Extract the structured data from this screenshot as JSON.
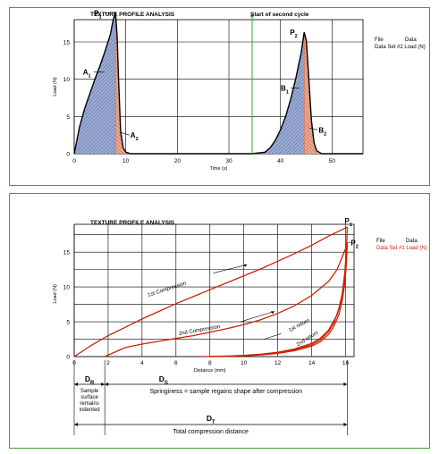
{
  "chart_data": [
    {
      "type": "area",
      "title": "TEXTURE PROFILE ANALYSIS",
      "xlabel": "Time (s)",
      "ylabel": "Load (N)",
      "xlim": [
        0,
        56
      ],
      "ylim": [
        0,
        18
      ],
      "x_ticks": [
        "0",
        "10",
        "20",
        "30",
        "40",
        "50"
      ],
      "y_ticks": [
        "0",
        "5",
        "10",
        "15"
      ],
      "grid": true,
      "legend": {
        "position": "top-right",
        "header": [
          "File",
          "Data"
        ],
        "entries": [
          {
            "label": "Data Set #2 Load (N)",
            "color": "#000000"
          }
        ]
      },
      "vline": {
        "x": 34.5,
        "label": "Start of second cycle",
        "color": "#3aa63a"
      },
      "series": [
        {
          "name": "Data Set #2",
          "x": [
            0,
            1,
            2,
            3,
            4,
            5,
            6,
            7,
            7.5,
            8,
            8.3,
            8.6,
            9,
            9.5,
            10,
            11,
            12,
            20,
            30,
            34.5,
            37,
            38,
            39,
            40,
            41,
            42,
            43,
            44,
            44.6,
            45,
            45.4,
            46,
            46.5,
            47,
            48,
            50,
            56
          ],
          "y": [
            0,
            3.5,
            6,
            8,
            10,
            11.8,
            13.8,
            16,
            17.8,
            19,
            16,
            10,
            3,
            0.8,
            0.2,
            0,
            0,
            0,
            0,
            0,
            0.2,
            0.8,
            1.8,
            3.2,
            5,
            7.4,
            10.2,
            13.5,
            16.3,
            15.2,
            11,
            4.5,
            1.5,
            0.4,
            0,
            0,
            0
          ]
        }
      ],
      "annotations": [
        {
          "label": "P",
          "sub": "1",
          "x": 8,
          "y": 19
        },
        {
          "label": "A",
          "sub": "1",
          "x": 5.5,
          "y": 11
        },
        {
          "label": "A",
          "sub": "2",
          "x": 9.5,
          "y": 2.5
        },
        {
          "label": "P",
          "sub": "2",
          "x": 44.6,
          "y": 16.3
        },
        {
          "label": "B",
          "sub": "1",
          "x": 43,
          "y": 8.8
        },
        {
          "label": "B",
          "sub": "2",
          "x": 46,
          "y": 3.2
        }
      ],
      "fills": {
        "A1_B1": "#9aaad0",
        "A2_B2": "#e8a890"
      }
    },
    {
      "type": "line",
      "title": "TEXTURE PROFILE ANALYSIS",
      "xlabel": "Distance (mm)",
      "ylabel": "Load (N)",
      "xlim": [
        0,
        16.5
      ],
      "ylim": [
        0,
        19
      ],
      "x_ticks": [
        "0",
        "2",
        "4",
        "6",
        "8",
        "10",
        "12",
        "14",
        "16"
      ],
      "y_ticks": [
        "0",
        "5",
        "10",
        "15"
      ],
      "grid": true,
      "legend": {
        "position": "top-right",
        "header": [
          "File",
          "Data"
        ],
        "entries": [
          {
            "label": "Data Set #1 Load (N)",
            "color": "#cc2200"
          }
        ]
      },
      "series": [
        {
          "name": "Data Set #1 - 1st Compression",
          "x": [
            0,
            1,
            2,
            3,
            4,
            5,
            6,
            7,
            8,
            9,
            10,
            11,
            12,
            13,
            14,
            15,
            16.1
          ],
          "y": [
            0,
            1.6,
            3,
            4.2,
            5.4,
            6.5,
            7.6,
            8.6,
            9.6,
            10.6,
            11.6,
            12.6,
            13.7,
            14.8,
            16,
            17.3,
            18.6
          ]
        },
        {
          "name": "Data Set #1 - 1st return",
          "x": [
            16.1,
            16.05,
            15.95,
            15.8,
            15.6,
            15.3,
            15,
            14.5,
            14,
            13,
            12,
            11,
            10,
            9,
            8,
            7.5
          ],
          "y": [
            18.6,
            15.5,
            12,
            9,
            6.8,
            4.8,
            3.6,
            2.4,
            1.7,
            1,
            0.6,
            0.35,
            0.18,
            0.08,
            0.02,
            0
          ]
        },
        {
          "name": "Data Set #1 - 2nd Compression",
          "x": [
            1.8,
            3,
            4,
            5,
            6,
            7,
            8,
            9,
            10,
            11,
            12,
            13,
            14,
            15,
            15.5,
            16,
            16.1
          ],
          "y": [
            0,
            1.3,
            1.8,
            2.2,
            2.6,
            3,
            3.5,
            4,
            4.6,
            5.3,
            6.2,
            7.3,
            8.8,
            10.8,
            12.5,
            15.5,
            16.4
          ]
        },
        {
          "name": "Data Set #1 - 2nd return",
          "x": [
            16.1,
            16.05,
            15.95,
            15.8,
            15.6,
            15.3,
            15,
            14.5,
            14,
            13,
            12,
            11,
            10,
            9,
            8
          ],
          "y": [
            16.4,
            13.5,
            10.5,
            8,
            6,
            4.3,
            3.2,
            2.1,
            1.5,
            0.85,
            0.45,
            0.25,
            0.12,
            0.04,
            0
          ]
        },
        {
          "name": "Data Set #1 - 1st return (inner)",
          "x": [
            16.1,
            16,
            15.8,
            15.5,
            15,
            14.5,
            14,
            13,
            12,
            11,
            10
          ],
          "y": [
            16.4,
            12,
            8.5,
            6,
            3.8,
            2.6,
            1.9,
            1.1,
            0.6,
            0.3,
            0.1
          ]
        }
      ],
      "annotations": [
        {
          "label": "1st Compression",
          "x": 5.5,
          "y": 9.5,
          "rotate": -18
        },
        {
          "label": "2nd Compression",
          "x": 7.4,
          "y": 3.6,
          "rotate": -10
        },
        {
          "label": "1st return",
          "x": 13.3,
          "y": 4.3,
          "rotate": -28
        },
        {
          "label": "2nd return",
          "x": 13.8,
          "y": 2.4,
          "rotate": -32
        },
        {
          "label": "P",
          "sub": "1",
          "x": 16.1,
          "y": 18.6
        },
        {
          "label": "P",
          "sub": "2",
          "x": 16.1,
          "y": 16.4
        }
      ],
      "dimensions": [
        {
          "label": "D",
          "sub": "R",
          "x1": 0,
          "x2": 1.8,
          "caption": [
            "Sample",
            "surface",
            "remains",
            "indented"
          ]
        },
        {
          "label": "D",
          "sub": "S",
          "x1": 1.8,
          "x2": 16.1,
          "caption": [
            "Springiness = sample regains shape after compression"
          ]
        },
        {
          "label": "D",
          "sub": "T",
          "x1": 0,
          "x2": 16.1,
          "caption": [
            "Total compression distance"
          ]
        }
      ]
    }
  ],
  "colors": {
    "panel_border": "#4a9a3a",
    "grid": "#000000",
    "curve1": "#000000",
    "curve2": "#cc2200",
    "vline": "#3aa63a"
  }
}
